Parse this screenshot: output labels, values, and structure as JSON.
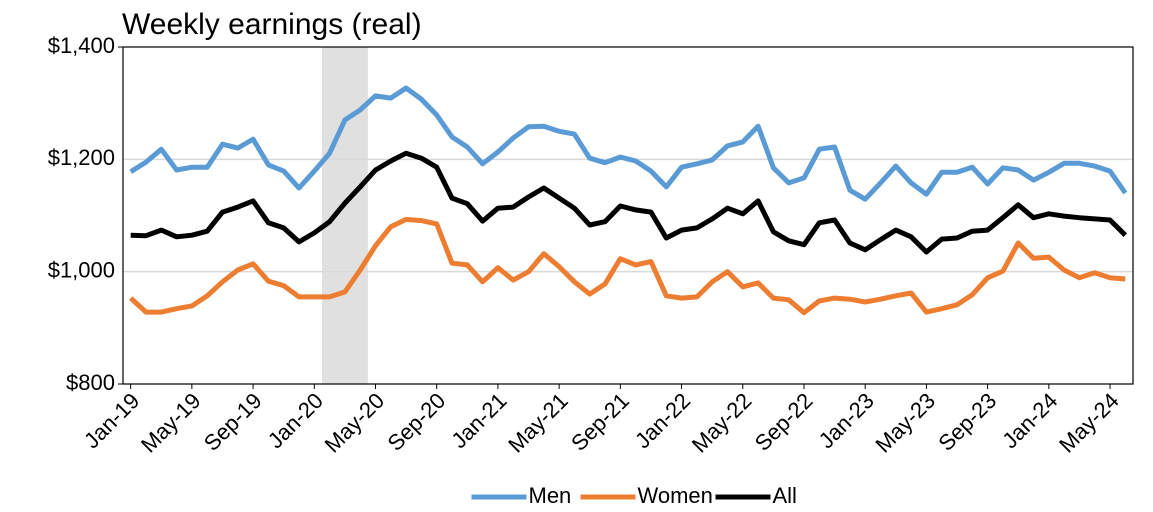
{
  "chart_data": {
    "type": "line",
    "title": "Weekly earnings (real)",
    "categories": [
      "Jan-19",
      null,
      null,
      null,
      "May-19",
      null,
      null,
      null,
      "Sep-19",
      null,
      null,
      null,
      "Jan-20",
      null,
      null,
      null,
      "May-20",
      null,
      null,
      null,
      "Sep-20",
      null,
      null,
      null,
      "Jan-21",
      null,
      null,
      null,
      "May-21",
      null,
      null,
      null,
      "Sep-21",
      null,
      null,
      null,
      "Jan-22",
      null,
      null,
      null,
      "May-22",
      null,
      null,
      null,
      "Sep-22",
      null,
      null,
      null,
      "Jan-23",
      null,
      null,
      null,
      "May-23",
      null,
      null,
      null,
      "Sep-23",
      null,
      null,
      null,
      "Jan-24",
      null,
      null,
      null,
      "May-24",
      null
    ],
    "series": [
      {
        "name": "Men",
        "color": "#5b9bd5",
        "values": [
          1178,
          1195,
          1218,
          1181,
          1186,
          1186,
          1227,
          1220,
          1236,
          1190,
          1179,
          1149,
          1179,
          1211,
          1270,
          1288,
          1313,
          1309,
          1327,
          1307,
          1279,
          1240,
          1222,
          1192,
          1213,
          1238,
          1258,
          1259,
          1250,
          1245,
          1202,
          1194,
          1204,
          1197,
          1179,
          1151,
          1186,
          1192,
          1199,
          1224,
          1231,
          1259,
          1185,
          1158,
          1167,
          1218,
          1222,
          1145,
          1129,
          1158,
          1188,
          1158,
          1138,
          1177,
          1177,
          1186,
          1156,
          1185,
          1181,
          1163,
          1177,
          1193,
          1193,
          1188,
          1179,
          1140
        ]
      },
      {
        "name": "Women",
        "color": "#ed7d31",
        "values": [
          953,
          928,
          928,
          934,
          939,
          957,
          982,
          1003,
          1014,
          983,
          975,
          955,
          955,
          955,
          964,
          1003,
          1046,
          1080,
          1093,
          1091,
          1085,
          1015,
          1012,
          982,
          1007,
          985,
          1000,
          1032,
          1009,
          982,
          960,
          978,
          1023,
          1012,
          1018,
          957,
          953,
          955,
          982,
          1000,
          973,
          980,
          953,
          950,
          927,
          948,
          953,
          951,
          946,
          951,
          957,
          962,
          928,
          934,
          941,
          959,
          989,
          1001,
          1051,
          1024,
          1026,
          1003,
          989,
          998,
          989,
          987
        ]
      },
      {
        "name": "All",
        "color": "#000000",
        "values": [
          1065,
          1064,
          1074,
          1062,
          1065,
          1072,
          1106,
          1115,
          1126,
          1087,
          1078,
          1053,
          1069,
          1089,
          1122,
          1151,
          1181,
          1197,
          1211,
          1202,
          1186,
          1131,
          1121,
          1090,
          1113,
          1115,
          1133,
          1149,
          1131,
          1113,
          1083,
          1089,
          1117,
          1110,
          1106,
          1060,
          1074,
          1078,
          1094,
          1113,
          1103,
          1126,
          1071,
          1055,
          1048,
          1087,
          1092,
          1051,
          1039,
          1057,
          1074,
          1062,
          1035,
          1058,
          1060,
          1072,
          1074,
          1096,
          1119,
          1096,
          1103,
          1099,
          1096,
          1094,
          1092,
          1065
        ]
      }
    ],
    "ylim": [
      800,
      1400
    ],
    "yticks": [
      {
        "value": 800,
        "label": "$800"
      },
      {
        "value": 1000,
        "label": "$1,000"
      },
      {
        "value": 1200,
        "label": "$1,200"
      },
      {
        "value": 1400,
        "label": "$1,400"
      }
    ],
    "grid": true,
    "shaded_region": {
      "start": 13,
      "end": 15,
      "color": "#e0e0e0"
    },
    "legend": "bottom"
  }
}
